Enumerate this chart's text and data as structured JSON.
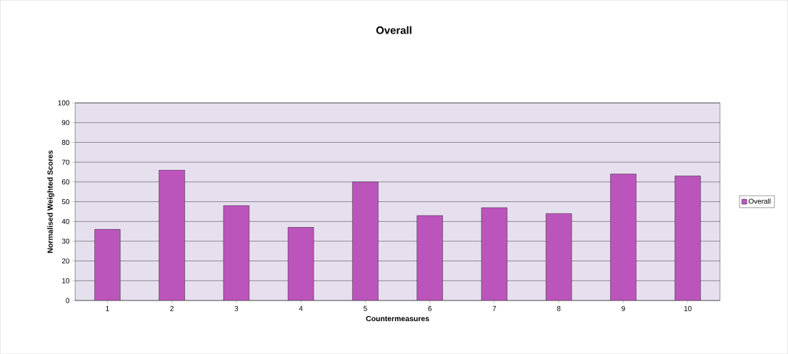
{
  "chart_data": {
    "type": "bar",
    "title": "Overall",
    "xlabel": "Countermeasures",
    "ylabel": "Normalised Weighted Scores",
    "categories": [
      "1",
      "2",
      "3",
      "4",
      "5",
      "6",
      "7",
      "8",
      "9",
      "10"
    ],
    "series": [
      {
        "name": "Overall",
        "color": "#bb55bb",
        "values": [
          36,
          66,
          48,
          37,
          60,
          43,
          47,
          44,
          64,
          63
        ]
      }
    ],
    "ylim": [
      0,
      100
    ],
    "yticks": [
      0,
      10,
      20,
      30,
      40,
      50,
      60,
      70,
      80,
      90,
      100
    ],
    "grid": "y",
    "legend": "right"
  }
}
